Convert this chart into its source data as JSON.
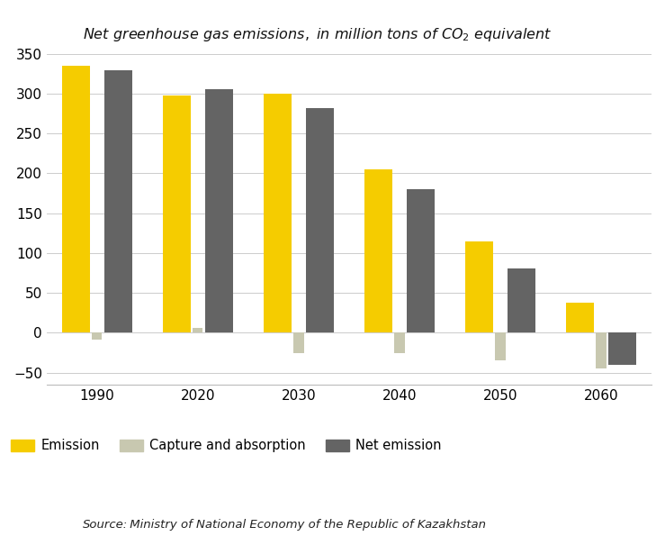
{
  "title_parts": [
    "Net greenhouse gas emissions, in million tons of CO",
    "2",
    " equivalent"
  ],
  "years": [
    "1990",
    "2020",
    "2030",
    "2040",
    "2050",
    "2060"
  ],
  "emission": [
    335,
    297,
    300,
    205,
    115,
    38
  ],
  "capture_absorption": [
    -8,
    6,
    -25,
    -25,
    -35,
    -45
  ],
  "net_emission": [
    329,
    305,
    282,
    180,
    81,
    -40
  ],
  "emission_color": "#F5CC00",
  "capture_color": "#C8C8B0",
  "net_color": "#646464",
  "ylim": [
    -65,
    360
  ],
  "yticks": [
    -50,
    0,
    50,
    100,
    150,
    200,
    250,
    300,
    350
  ],
  "source_italic": "Source:",
  "source_normal": " Ministry of National Economy of the Republic of Kazakhstan",
  "legend_labels": [
    "Emission",
    "Capture and absorption",
    "Net emission"
  ],
  "emission_bar_width": 0.28,
  "capture_bar_width": 0.1,
  "net_bar_width": 0.28,
  "background_color": "#FFFFFF",
  "grid_color": "#CCCCCC",
  "tick_fontsize": 11,
  "source_fontsize": 9.5
}
